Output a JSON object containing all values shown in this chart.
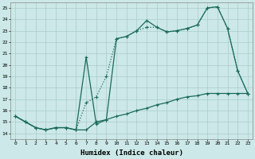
{
  "xlabel": "Humidex (Indice chaleur)",
  "background_color": "#cce8e8",
  "grid_color": "#aacccc",
  "line_color": "#1a6b5a",
  "xlim": [
    -0.5,
    23.5
  ],
  "ylim": [
    13.5,
    25.5
  ],
  "xticks": [
    0,
    1,
    2,
    3,
    4,
    5,
    6,
    7,
    8,
    9,
    10,
    11,
    12,
    13,
    14,
    15,
    16,
    17,
    18,
    19,
    20,
    21,
    22,
    23
  ],
  "yticks": [
    14,
    15,
    16,
    17,
    18,
    19,
    20,
    21,
    22,
    23,
    24,
    25
  ],
  "series1_x": [
    0,
    1,
    2,
    3,
    4,
    5,
    6,
    7,
    8,
    9,
    10,
    11,
    12,
    13,
    14,
    15,
    16,
    17,
    18,
    19,
    20,
    21,
    22,
    23
  ],
  "series1_y": [
    15.5,
    15.0,
    14.5,
    14.3,
    14.5,
    14.5,
    14.3,
    16.7,
    17.2,
    19.0,
    22.3,
    22.5,
    23.0,
    23.3,
    23.3,
    22.9,
    23.0,
    23.2,
    23.5,
    25.0,
    25.1,
    23.2,
    19.5,
    17.5
  ],
  "series2_x": [
    0,
    1,
    2,
    3,
    4,
    5,
    6,
    7,
    8,
    9,
    10,
    11,
    12,
    13,
    14,
    15,
    16,
    17,
    18,
    19,
    20,
    21,
    22,
    23
  ],
  "series2_y": [
    15.5,
    15.0,
    14.5,
    14.3,
    14.5,
    14.5,
    14.3,
    20.7,
    14.8,
    15.2,
    22.3,
    22.5,
    23.0,
    23.9,
    23.3,
    22.9,
    23.0,
    23.2,
    23.5,
    25.0,
    25.1,
    23.2,
    19.5,
    17.5
  ],
  "series3_x": [
    0,
    1,
    2,
    3,
    4,
    5,
    6,
    7,
    8,
    9,
    10,
    11,
    12,
    13,
    14,
    15,
    16,
    17,
    18,
    19,
    20,
    21,
    22,
    23
  ],
  "series3_y": [
    15.5,
    15.0,
    14.5,
    14.3,
    14.5,
    14.5,
    14.3,
    14.3,
    15.0,
    15.2,
    15.5,
    15.7,
    16.0,
    16.2,
    16.5,
    16.7,
    17.0,
    17.2,
    17.3,
    17.5,
    17.5,
    17.5,
    17.5,
    17.5
  ]
}
